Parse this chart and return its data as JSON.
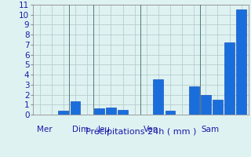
{
  "bar_values": [
    0,
    0,
    0.4,
    1.3,
    0,
    0.6,
    0.7,
    0.5,
    0,
    0,
    3.5,
    0.4,
    0,
    2.8,
    2.0,
    1.5,
    7.2,
    10.5
  ],
  "bar_color": "#1a6edb",
  "day_labels": [
    "Mer",
    "Dim",
    "Jeu",
    "Ven",
    "Sam"
  ],
  "day_tick_positions": [
    1,
    4,
    6,
    10,
    15
  ],
  "vline_positions": [
    2.5,
    4.5,
    8.5,
    13.5
  ],
  "xlabel": "Précipitations 24h ( mm )",
  "ylim": [
    0,
    11
  ],
  "yticks": [
    0,
    1,
    2,
    3,
    4,
    5,
    6,
    7,
    8,
    9,
    10,
    11
  ],
  "bg_color": "#dff2f2",
  "grid_color": "#adc8c8",
  "bar_edge_color": "#0040bb",
  "text_color": "#1a1aaa",
  "xlabel_fontsize": 8,
  "tick_fontsize": 7.5,
  "day_label_fontsize": 7.5
}
